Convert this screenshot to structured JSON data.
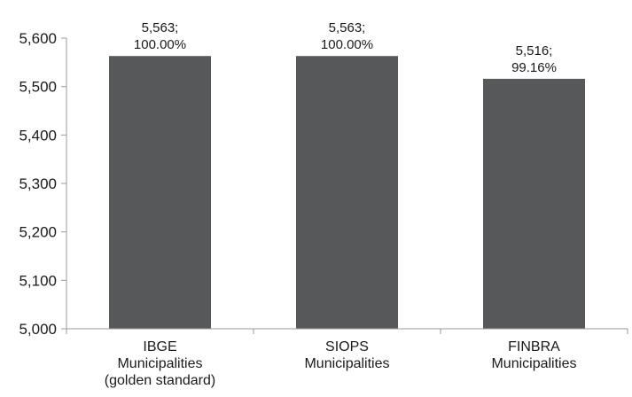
{
  "chart_data": {
    "type": "bar",
    "title": "",
    "xlabel": "",
    "ylabel": "",
    "ylim": [
      5000,
      5600
    ],
    "yticks": [
      "5,000",
      "5,100",
      "5,200",
      "5,300",
      "5,400",
      "5,500",
      "5,600"
    ],
    "ytick_values": [
      5000,
      5100,
      5200,
      5300,
      5400,
      5500,
      5600
    ],
    "grid": false,
    "legend": "none",
    "bar_color": "#575859",
    "categories": [
      [
        "IBGE",
        "Municipalities",
        "(golden standard)"
      ],
      [
        "SIOPS",
        "Municipalities"
      ],
      [
        "FINBRA",
        "Municipalities"
      ]
    ],
    "values": [
      5563,
      5563,
      5516
    ],
    "data_labels": [
      [
        "5,563;",
        "100.00%"
      ],
      [
        "5,563;",
        "100.00%"
      ],
      [
        "5,516;",
        "99.16%"
      ]
    ]
  }
}
